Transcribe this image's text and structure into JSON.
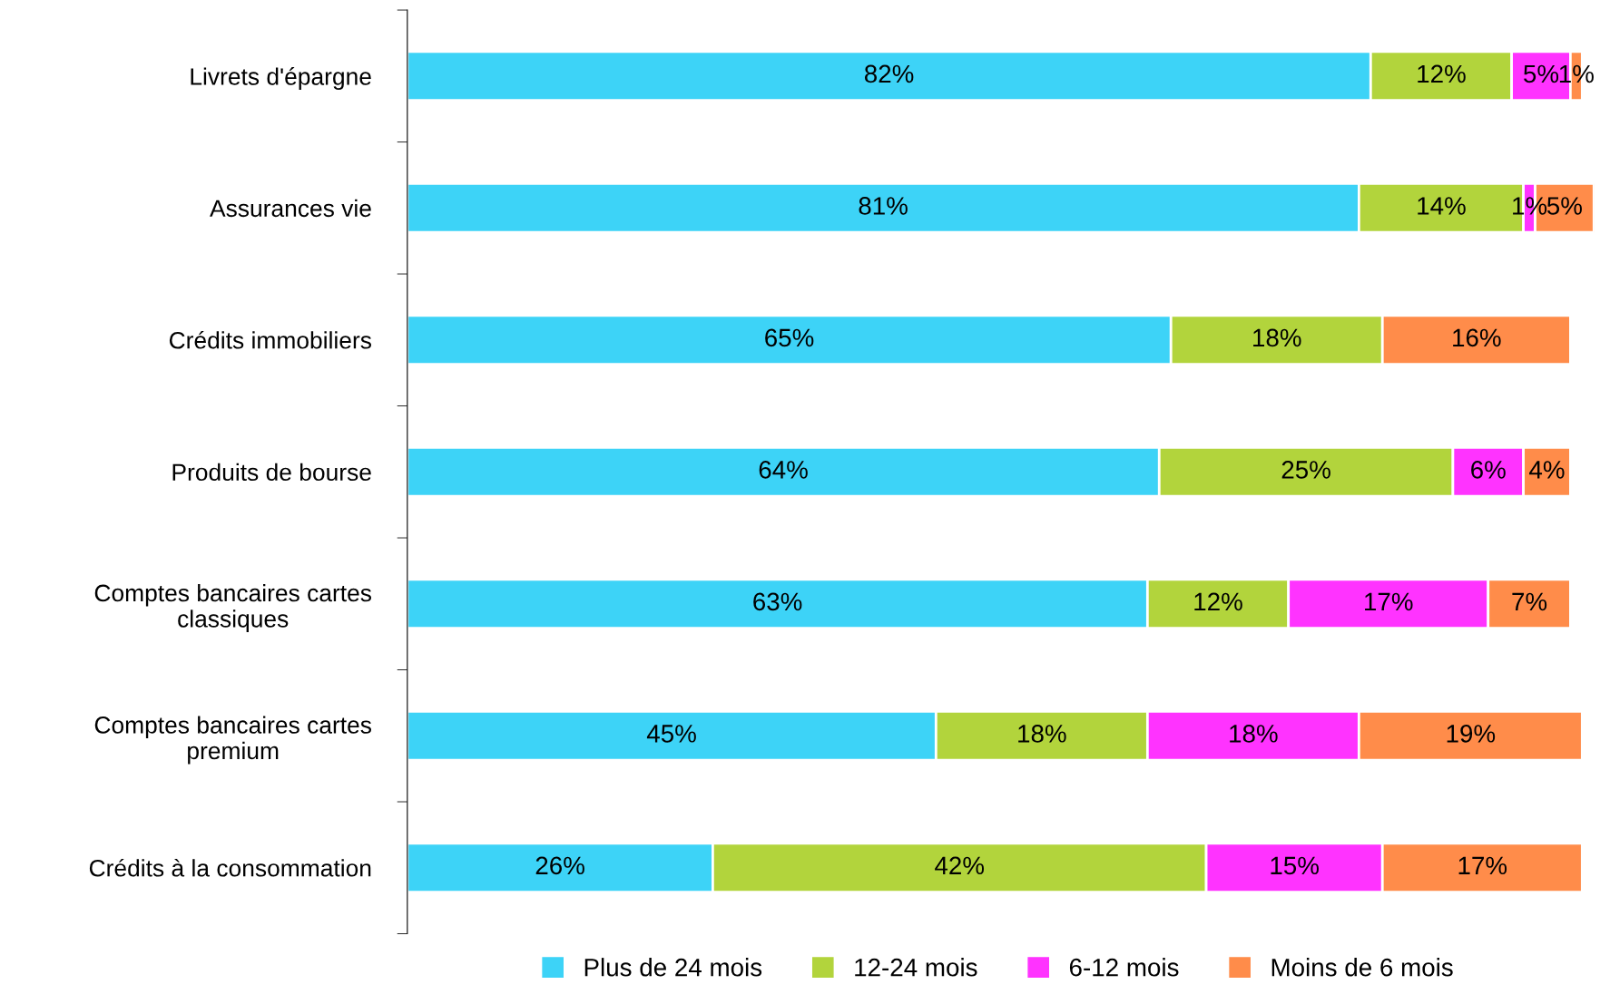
{
  "chart_data": {
    "type": "bar",
    "orientation": "horizontal",
    "stacked": true,
    "categories": [
      "Livrets d'épargne",
      "Assurances vie",
      "Crédits immobiliers",
      "Produits de bourse",
      "Comptes bancaires cartes classiques",
      "Comptes bancaires cartes premium",
      "Crédits à la consommation"
    ],
    "series": [
      {
        "name": "Plus de 24 mois",
        "color": "#3dd3f7",
        "values": [
          82,
          81,
          65,
          64,
          63,
          45,
          26
        ],
        "value_labels": [
          "82%",
          "81%",
          "65%",
          "64%",
          "63%",
          "45%",
          "26%"
        ]
      },
      {
        "name": "12-24 mois",
        "color": "#b2d43c",
        "values": [
          12,
          14,
          18,
          25,
          12,
          18,
          42
        ],
        "value_labels": [
          "12%",
          "14%",
          "18%",
          "25%",
          "12%",
          "18%",
          "42%"
        ]
      },
      {
        "name": "6-12 mois",
        "color": "#ff33ff",
        "values": [
          5,
          1,
          null,
          6,
          17,
          18,
          15
        ],
        "value_labels": [
          "5%",
          "1%",
          null,
          "6%",
          "17%",
          "18%",
          "15%"
        ]
      },
      {
        "name": "Moins de 6 mois",
        "color": "#ff8c4a",
        "values": [
          1,
          5,
          16,
          4,
          7,
          19,
          17
        ],
        "value_labels": [
          "1%",
          "5%",
          "16%",
          "4%",
          "7%",
          "19%",
          "17%"
        ]
      }
    ],
    "tick_labels": "y",
    "legend": "bottom"
  }
}
